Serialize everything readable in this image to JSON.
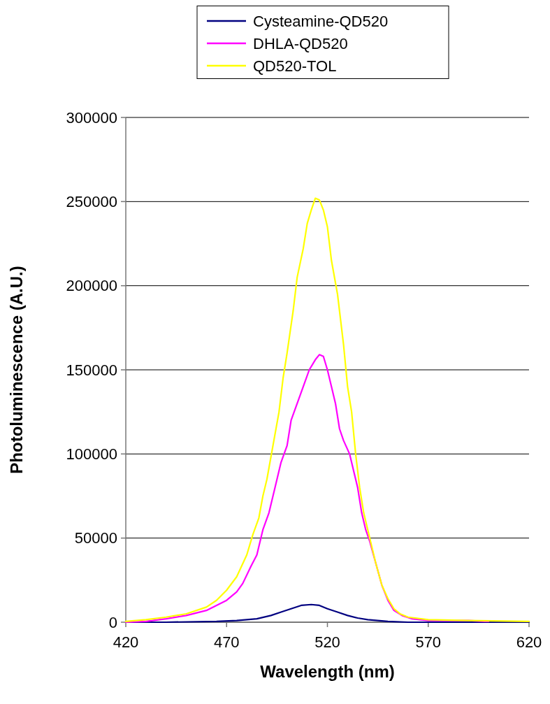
{
  "chart_data": {
    "type": "line",
    "xlabel": "Wavelength (nm)",
    "ylabel": "Photoluminescence (A.U.)",
    "xlim": [
      420,
      620
    ],
    "xticks": [
      420,
      470,
      520,
      570,
      620
    ],
    "ylim": [
      0,
      300000
    ],
    "yticks": [
      0,
      50000,
      100000,
      150000,
      200000,
      250000,
      300000
    ],
    "grid": "y",
    "legend": "top",
    "marker": "none",
    "line_style": "solid",
    "series": [
      {
        "name": "Cysteamine-QD520",
        "color": "#000080",
        "x": [
          420,
          440,
          465,
          475,
          485,
          492,
          497,
          502,
          507,
          512,
          516,
          520,
          525,
          530,
          535,
          540,
          550,
          560,
          590,
          620
        ],
        "values": [
          0,
          0,
          500,
          1000,
          2000,
          4000,
          6000,
          8000,
          10000,
          10500,
          10000,
          8000,
          6000,
          4000,
          2500,
          1500,
          500,
          0,
          0,
          0
        ]
      },
      {
        "name": "DHLA-QD520",
        "color": "#ff00ff",
        "x": [
          420,
          430,
          440,
          450,
          460,
          465,
          470,
          475,
          478,
          482,
          485,
          488,
          491,
          494,
          497,
          500,
          502,
          505,
          508,
          511,
          514,
          516,
          518,
          520,
          522,
          524,
          526,
          528,
          531,
          533,
          535,
          537,
          539,
          541,
          544,
          547,
          550,
          553,
          557,
          562,
          570,
          590,
          598,
          600
        ],
        "values": [
          0,
          500,
          2000,
          4000,
          7000,
          10000,
          13000,
          18000,
          23000,
          33000,
          40000,
          55000,
          65000,
          80000,
          95000,
          105000,
          120000,
          130000,
          140000,
          150000,
          156000,
          159000,
          158000,
          150000,
          140000,
          130000,
          115000,
          108000,
          100000,
          90000,
          80000,
          65000,
          55000,
          48000,
          35000,
          22000,
          13000,
          7000,
          4000,
          2000,
          1000,
          1000,
          500,
          500
        ]
      },
      {
        "name": "QD520-TOL",
        "color": "#ffff00",
        "x": [
          420,
          430,
          440,
          450,
          460,
          465,
          470,
          475,
          480,
          483,
          486,
          488,
          490,
          493,
          496,
          498,
          500,
          503,
          505,
          508,
          510,
          512,
          514,
          516,
          518,
          520,
          522,
          525,
          528,
          530,
          532,
          534,
          536,
          538,
          541,
          544,
          547,
          550,
          553,
          556,
          560,
          570,
          590,
          620
        ],
        "values": [
          500,
          1500,
          3000,
          5000,
          9000,
          13000,
          19000,
          27000,
          40000,
          52000,
          62000,
          75000,
          85000,
          105000,
          125000,
          145000,
          160000,
          185000,
          205000,
          222000,
          237000,
          245000,
          252000,
          251000,
          245000,
          235000,
          215000,
          195000,
          165000,
          140000,
          125000,
          100000,
          80000,
          65000,
          50000,
          35000,
          22000,
          14000,
          8000,
          5000,
          3000,
          1500,
          1000,
          500
        ]
      }
    ]
  }
}
